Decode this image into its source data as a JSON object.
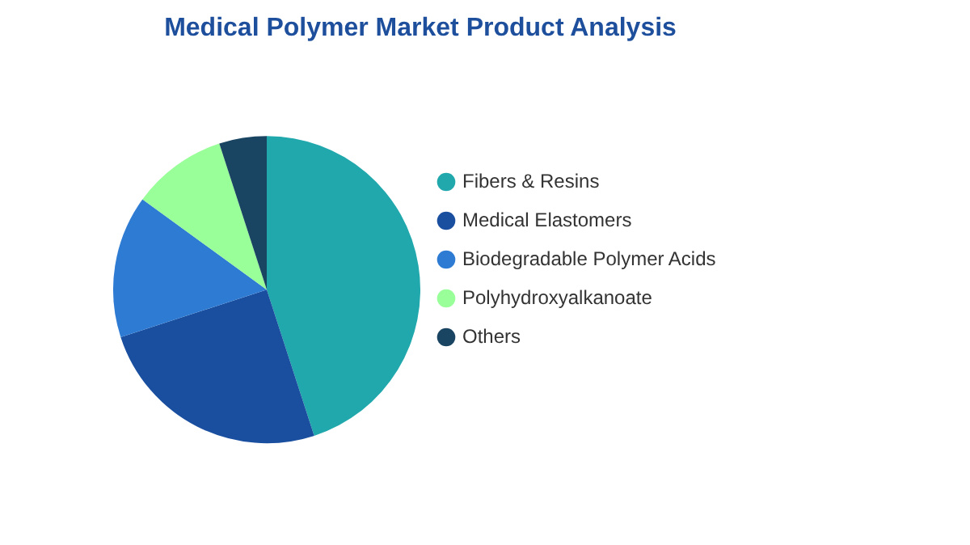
{
  "chart_data": {
    "type": "pie",
    "title": "Medical Polymer Market Product Analysis",
    "categories": [
      "Fibers & Resins",
      "Medical Elastomers",
      "Biodegradable Polymer Acids",
      "Polyhydroxyalkanoate",
      "Others"
    ],
    "values": [
      45,
      25,
      15,
      10,
      5
    ],
    "colors": [
      "#20a8ac",
      "#1a4fa0",
      "#2e7bd4",
      "#99ff99",
      "#1a4562"
    ],
    "legend": "right"
  }
}
